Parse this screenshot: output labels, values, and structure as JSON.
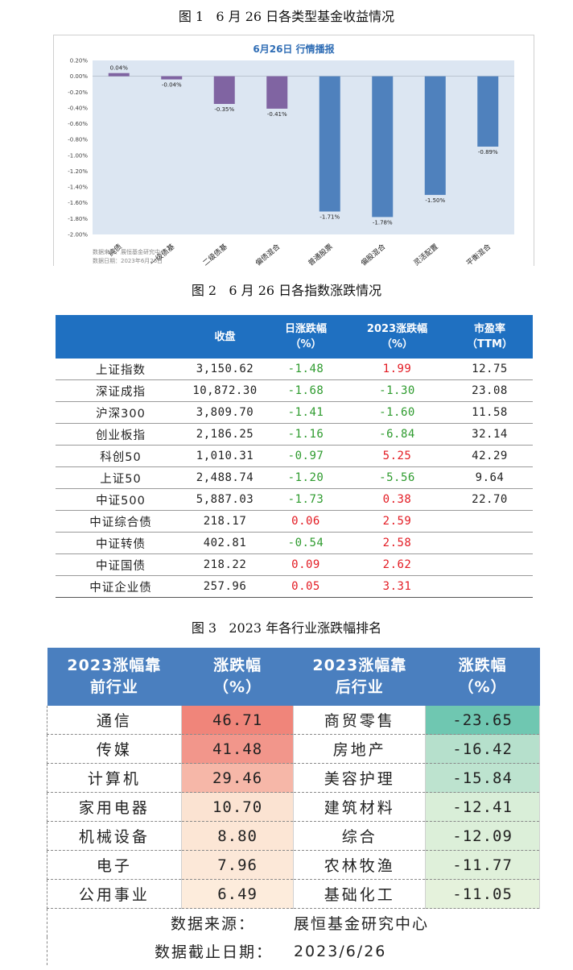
{
  "figure1": {
    "caption": "图 1   6 月 26 日各类型基金收益情况",
    "source": "数据来源：展恒基金研究中心",
    "date": "数据日期：2023年6月26日",
    "chart_data": {
      "type": "bar",
      "title": "6月26日  行情播报",
      "categories": [
        "纯债",
        "一级债基",
        "二级债基",
        "偏债混合",
        "普通股票",
        "偏股混合",
        "灵活配置",
        "平衡混合"
      ],
      "values": [
        0.04,
        -0.04,
        -0.35,
        -0.41,
        -1.71,
        -1.78,
        -1.5,
        -0.89
      ],
      "data_labels": [
        "0.04%",
        "-0.04%",
        "-0.35%",
        "-0.41%",
        "-1.71%",
        "-1.78%",
        "-1.50%",
        "-0.89%"
      ],
      "bar_colors": [
        "#8064a2",
        "#8064a2",
        "#8064a2",
        "#8064a2",
        "#4f81bd",
        "#4f81bd",
        "#4f81bd",
        "#4f81bd"
      ],
      "ylim": [
        -2.0,
        0.2
      ],
      "yticks": [
        0.2,
        0.0,
        -0.2,
        -0.4,
        -0.6,
        -0.8,
        -1.0,
        -1.2,
        -1.4,
        -1.6,
        -1.8,
        -2.0
      ],
      "ytick_labels": [
        "0.20%",
        "0.00%",
        "-0.20%",
        "-0.40%",
        "-0.60%",
        "-0.80%",
        "-1.00%",
        "-1.20%",
        "-1.40%",
        "-1.60%",
        "-1.80%",
        "-2.00%"
      ],
      "plot_bg": "#dce6f2"
    }
  },
  "figure2": {
    "caption": "图 2   6 月 26 日各指数涨跌情况",
    "header_bg": "#1f70c1",
    "headers": [
      {
        "l1": "",
        "l2": ""
      },
      {
        "l1": "收盘",
        "l2": ""
      },
      {
        "l1": "日涨跌幅",
        "l2": "（%）"
      },
      {
        "l1": "2023涨跌幅",
        "l2": "（%）"
      },
      {
        "l1": "市盈率",
        "l2": "（TTM）"
      }
    ],
    "up_color": "#e31b23",
    "down_color": "#2e9b2e",
    "rows": [
      {
        "name": "上证指数",
        "close": "3,150.62",
        "day": "-1.48",
        "ytd": "1.99",
        "pe": "12.75"
      },
      {
        "name": "深证成指",
        "close": "10,872.30",
        "day": "-1.68",
        "ytd": "-1.30",
        "pe": "23.08"
      },
      {
        "name": "沪深300",
        "close": "3,809.70",
        "day": "-1.41",
        "ytd": "-1.60",
        "pe": "11.58"
      },
      {
        "name": "创业板指",
        "close": "2,186.25",
        "day": "-1.16",
        "ytd": "-6.84",
        "pe": "32.14"
      },
      {
        "name": "科创50",
        "close": "1,010.31",
        "day": "-0.97",
        "ytd": "5.25",
        "pe": "42.29"
      },
      {
        "name": "上证50",
        "close": "2,488.74",
        "day": "-1.20",
        "ytd": "-5.56",
        "pe": "9.64"
      },
      {
        "name": "中证500",
        "close": "5,887.03",
        "day": "-1.73",
        "ytd": "0.38",
        "pe": "22.70"
      },
      {
        "name": "中证综合债",
        "close": "218.17",
        "day": "0.06",
        "ytd": "2.59",
        "pe": ""
      },
      {
        "name": "中证转债",
        "close": "402.81",
        "day": "-0.54",
        "ytd": "2.58",
        "pe": ""
      },
      {
        "name": "中证国债",
        "close": "218.22",
        "day": "0.09",
        "ytd": "2.62",
        "pe": ""
      },
      {
        "name": "中证企业债",
        "close": "257.96",
        "day": "0.05",
        "ytd": "3.31",
        "pe": ""
      }
    ]
  },
  "figure3": {
    "caption": "图 3   2023 年各行业涨跌幅排名",
    "headers": [
      {
        "l1": "2023涨幅靠",
        "l2": "前行业"
      },
      {
        "l1": "涨跌幅",
        "l2": "（%）"
      },
      {
        "l1": "2023涨幅靠",
        "l2": "后行业"
      },
      {
        "l1": "涨跌幅",
        "l2": "（%）"
      }
    ],
    "rows": [
      {
        "top": "通信",
        "top_val": "46.71",
        "top_bg": "#f0857a",
        "bottom": "商贸零售",
        "bottom_val": "-23.65",
        "bottom_bg": "#6fc7b1"
      },
      {
        "top": "传媒",
        "top_val": "41.48",
        "top_bg": "#f2968b",
        "bottom": "房地产",
        "bottom_val": "-16.42",
        "bottom_bg": "#b6e0cc"
      },
      {
        "top": "计算机",
        "top_val": "29.46",
        "top_bg": "#f6b7a8",
        "bottom": "美容护理",
        "bottom_val": "-15.84",
        "bottom_bg": "#bde3cf"
      },
      {
        "top": "家用电器",
        "top_val": "10.70",
        "top_bg": "#fbe3d2",
        "bottom": "建筑材料",
        "bottom_val": "-12.41",
        "bottom_bg": "#d9eed8"
      },
      {
        "top": "机械设备",
        "top_val": "8.80",
        "top_bg": "#fce6d5",
        "bottom": "综合",
        "bottom_val": "-12.09",
        "bottom_bg": "#dcefd9"
      },
      {
        "top": "电子",
        "top_val": "7.96",
        "top_bg": "#fce8d8",
        "bottom": "农林牧渔",
        "bottom_val": "-11.77",
        "bottom_bg": "#dff0da"
      },
      {
        "top": "公用事业",
        "top_val": "6.49",
        "top_bg": "#fdecdc",
        "bottom": "基础化工",
        "bottom_val": "-11.05",
        "bottom_bg": "#e5f2dc"
      }
    ],
    "footer": {
      "source_label": "数据来源：",
      "source_value": "展恒基金研究中心",
      "date_label": "数据截止日期：",
      "date_value": "2023/6/26"
    }
  }
}
